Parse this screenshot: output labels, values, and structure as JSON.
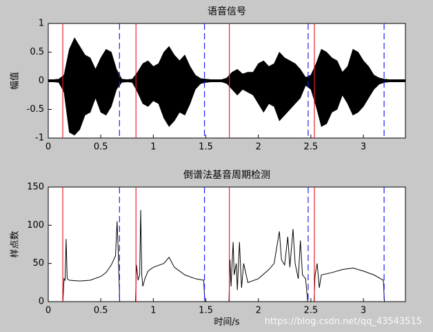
{
  "chart_data": [
    {
      "type": "area",
      "title": "语音信号",
      "y_label": "幅值",
      "xlim": [
        0,
        3.4
      ],
      "ylim": [
        -1,
        1
      ],
      "xticks": [
        0,
        0.5,
        1,
        1.5,
        2,
        2.5,
        3
      ],
      "yticks": [
        -1,
        -0.5,
        0,
        0.5,
        1
      ],
      "x": [
        0,
        0.05,
        0.1,
        0.15,
        0.2,
        0.25,
        0.3,
        0.35,
        0.4,
        0.45,
        0.5,
        0.55,
        0.6,
        0.65,
        0.7,
        0.75,
        0.8,
        0.85,
        0.9,
        0.95,
        1.0,
        1.05,
        1.1,
        1.15,
        1.2,
        1.25,
        1.3,
        1.35,
        1.4,
        1.45,
        1.5,
        1.55,
        1.6,
        1.65,
        1.7,
        1.75,
        1.8,
        1.85,
        1.9,
        1.95,
        2.0,
        2.05,
        2.1,
        2.15,
        2.2,
        2.25,
        2.3,
        2.35,
        2.4,
        2.45,
        2.5,
        2.55,
        2.6,
        2.65,
        2.7,
        2.75,
        2.8,
        2.85,
        2.9,
        2.95,
        3.0,
        3.05,
        3.1,
        3.15,
        3.2,
        3.25,
        3.3,
        3.35,
        3.4
      ],
      "series": [
        {
          "color": "#000000",
          "values": [
            0.02,
            0.02,
            0.03,
            0.1,
            0.55,
            0.75,
            0.6,
            0.45,
            0.4,
            0.2,
            0.4,
            0.55,
            0.5,
            0.2,
            0.03,
            0.02,
            0.03,
            0.15,
            0.3,
            0.35,
            0.25,
            0.3,
            0.5,
            0.6,
            0.45,
            0.35,
            0.45,
            0.25,
            0.1,
            0.04,
            0.03,
            0.02,
            0.02,
            0.02,
            0.05,
            0.15,
            0.2,
            0.12,
            0.15,
            0.15,
            0.3,
            0.35,
            0.25,
            0.3,
            0.5,
            0.4,
            0.35,
            0.3,
            0.2,
            0.06,
            0.1,
            0.3,
            0.55,
            0.5,
            0.4,
            0.35,
            0.15,
            0.25,
            0.55,
            0.5,
            0.35,
            0.25,
            0.1,
            0.05,
            0.03,
            0.02,
            0.02,
            0.02,
            0.02
          ]
        },
        {
          "color": "#000000",
          "values": [
            -0.02,
            -0.02,
            -0.03,
            -0.2,
            -0.9,
            -0.95,
            -0.85,
            -0.6,
            -0.55,
            -0.3,
            -0.55,
            -0.6,
            -0.45,
            -0.15,
            -0.03,
            -0.02,
            -0.03,
            -0.2,
            -0.4,
            -0.45,
            -0.35,
            -0.4,
            -0.65,
            -0.8,
            -0.7,
            -0.55,
            -0.6,
            -0.4,
            -0.15,
            -0.05,
            -0.03,
            -0.02,
            -0.02,
            -0.02,
            -0.05,
            -0.15,
            -0.25,
            -0.15,
            -0.2,
            -0.25,
            -0.4,
            -0.55,
            -0.4,
            -0.45,
            -0.7,
            -0.6,
            -0.5,
            -0.4,
            -0.3,
            -0.08,
            -0.15,
            -0.45,
            -0.8,
            -0.75,
            -0.55,
            -0.5,
            -0.25,
            -0.4,
            -0.6,
            -0.55,
            -0.45,
            -0.3,
            -0.15,
            -0.06,
            -0.03,
            -0.02,
            -0.02,
            -0.02,
            -0.02
          ]
        }
      ],
      "boundaries": {
        "start": [
          0.138,
          0.835,
          1.724,
          2.533
        ],
        "end": [
          0.678,
          1.487,
          2.474,
          3.197
        ],
        "start_color": "#e8202a",
        "end_color": "#1a1aff"
      }
    },
    {
      "type": "line",
      "title": "倒谱法基音周期检测",
      "y_label": "样点数",
      "x_label": "时间/s",
      "xlim": [
        0,
        3.4
      ],
      "ylim": [
        0,
        150
      ],
      "xticks": [
        0,
        0.5,
        1,
        1.5,
        2,
        2.5,
        3
      ],
      "yticks": [
        0,
        50,
        100,
        150
      ],
      "x": [
        0.14,
        0.15,
        0.16,
        0.17,
        0.18,
        0.2,
        0.3,
        0.4,
        0.5,
        0.55,
        0.6,
        0.64,
        0.655,
        0.665,
        0.68,
        0.75,
        0.83,
        0.84,
        0.855,
        0.87,
        0.88,
        0.89,
        0.9,
        0.92,
        0.95,
        1.0,
        1.1,
        1.15,
        1.2,
        1.3,
        1.4,
        1.48,
        1.49,
        1.6,
        1.72,
        1.73,
        1.74,
        1.76,
        1.77,
        1.79,
        1.8,
        1.82,
        1.84,
        1.86,
        1.9,
        2.0,
        2.1,
        2.15,
        2.2,
        2.22,
        2.25,
        2.28,
        2.3,
        2.33,
        2.35,
        2.38,
        2.4,
        2.42,
        2.45,
        2.47,
        2.5,
        2.53,
        2.54,
        2.56,
        2.58,
        2.6,
        2.7,
        2.8,
        2.9,
        3.0,
        3.1,
        3.19,
        3.2
      ],
      "series": [
        {
          "color": "#000000",
          "values": [
            0,
            30,
            28,
            82,
            30,
            28,
            27,
            28,
            33,
            38,
            48,
            60,
            105,
            70,
            0,
            null,
            0,
            48,
            28,
            35,
            120,
            35,
            20,
            30,
            40,
            45,
            50,
            58,
            45,
            35,
            30,
            28,
            0,
            null,
            0,
            55,
            20,
            78,
            35,
            50,
            15,
            78,
            18,
            50,
            25,
            30,
            42,
            50,
            92,
            55,
            48,
            85,
            45,
            95,
            50,
            30,
            80,
            35,
            30,
            0,
            null,
            0,
            35,
            50,
            18,
            35,
            38,
            42,
            44,
            40,
            35,
            28,
            0
          ]
        }
      ],
      "boundaries": {
        "start": [
          0.138,
          0.835,
          1.724,
          2.533
        ],
        "end": [
          0.678,
          1.487,
          2.474,
          3.197
        ],
        "start_color": "#e8202a",
        "end_color": "#1a1aff"
      }
    }
  ],
  "watermark": "https://blog.csdn.net/qq_43543515"
}
